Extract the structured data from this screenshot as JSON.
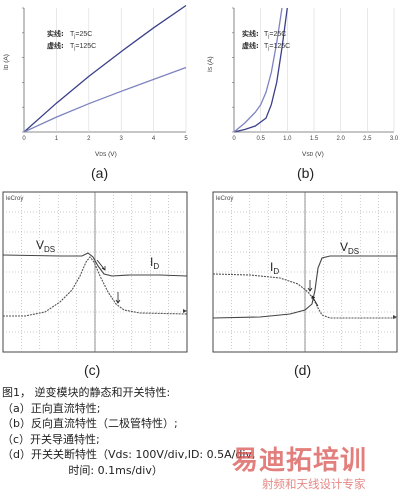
{
  "figure": {
    "panels": {
      "a": {
        "label": "(a)",
        "legend_solid": "实线:",
        "legend_dashed": "虚线:",
        "legend_t1": "T",
        "legend_t1_sub": "j",
        "legend_t1_val": "=25C",
        "legend_t2": "T",
        "legend_t2_sub": "j",
        "legend_t2_val": "=125C",
        "ylabel": "I",
        "ylabel_sub": "D",
        "ylabel_unit": " (A)",
        "xlabel": "V",
        "xlabel_sub": "DS",
        "xlabel_unit": " (V)",
        "xticks": [
          "0",
          "1",
          "2",
          "3",
          "4",
          "5"
        ],
        "yticks": [
          "0",
          "0.5",
          "1.0",
          "1.5",
          "2.0",
          "2.5"
        ]
      },
      "b": {
        "label": "(b)",
        "legend_solid": "实线:",
        "legend_dashed": "虚线:",
        "legend_t1": "T",
        "legend_t1_sub": "j",
        "legend_t1_val": "=25C",
        "legend_t2": "T",
        "legend_t2_sub": "j",
        "legend_t2_val": "=125C",
        "ylabel": "I",
        "ylabel_sub": "S",
        "ylabel_unit": " (A)",
        "xlabel": "V",
        "xlabel_sub": "SD",
        "xlabel_unit": " (V)",
        "xticks": [
          "0",
          "0.5",
          "1.0",
          "1.5",
          "2.0",
          "2.5",
          "3.0"
        ],
        "yticks": [
          "0",
          "0.5",
          "1.0",
          "1.5",
          "2.0",
          "2.5"
        ]
      },
      "c": {
        "label": "(c)",
        "brand": "leCroy",
        "vds": "V",
        "vds_sub": "DS",
        "id": "I",
        "id_sub": "D"
      },
      "d": {
        "label": "(d)",
        "brand": "leCroy",
        "vds": "V",
        "vds_sub": "DS",
        "id": "I",
        "id_sub": "D"
      }
    }
  },
  "caption": {
    "lines": [
      "图1， 逆变模块的静态和开关特性:",
      "（a）正向直流特性;",
      "（b）反向直流特性（二极管特性）;",
      "（c）开关导通特性;",
      "（d）开关关断特性（Vds: 100V/div,ID: 0.5A/div,",
      "                   时间: 0.1ms/div）"
    ]
  },
  "watermark": {
    "main": "易迪拓培训",
    "sub": "射频和天线设计专家"
  },
  "chart_data": [
    {
      "type": "line",
      "panel": "a",
      "xlabel": "V_DS (V)",
      "ylabel": "I_D (A)",
      "xlim": [
        0,
        5
      ],
      "ylim": [
        0,
        2.5
      ],
      "series": [
        {
          "name": "Tj=25C",
          "x": [
            0,
            1,
            2,
            3,
            4,
            5
          ],
          "y": [
            0,
            0.58,
            1.12,
            1.62,
            2.1,
            2.55
          ]
        },
        {
          "name": "Tj=125C",
          "x": [
            0,
            1,
            2,
            3,
            4,
            5
          ],
          "y": [
            0,
            0.3,
            0.57,
            0.82,
            1.06,
            1.3
          ]
        }
      ]
    },
    {
      "type": "line",
      "panel": "b",
      "xlabel": "V_SD (V)",
      "ylabel": "I_S (A)",
      "xlim": [
        0,
        3
      ],
      "ylim": [
        0,
        2.5
      ],
      "series": [
        {
          "name": "Tj=25C",
          "x": [
            0,
            0.2,
            0.4,
            0.6,
            0.7,
            0.8,
            0.9,
            1.0
          ],
          "y": [
            0,
            0.05,
            0.12,
            0.28,
            0.55,
            1.0,
            1.7,
            2.5
          ]
        },
        {
          "name": "Tj=125C",
          "x": [
            0,
            0.2,
            0.4,
            0.5,
            0.6,
            0.7,
            0.8,
            0.9
          ],
          "y": [
            0,
            0.18,
            0.4,
            0.55,
            0.8,
            1.2,
            1.8,
            2.5
          ]
        }
      ]
    }
  ]
}
